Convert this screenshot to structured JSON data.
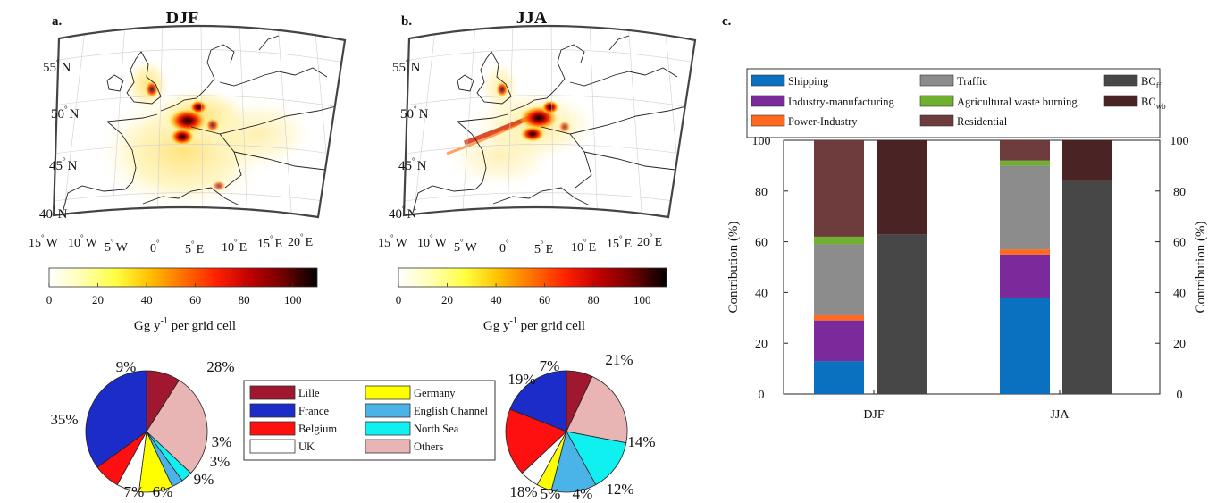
{
  "panels": {
    "a": {
      "letter": "a.",
      "title": "DJF"
    },
    "b": {
      "letter": "b.",
      "title": "JJA"
    },
    "c": {
      "letter": "c."
    }
  },
  "map": {
    "lat_labels": [
      "55",
      "50",
      "45",
      "40"
    ],
    "lat_suffix": "N",
    "lon_labels": [
      {
        "v": "15",
        "d": "W"
      },
      {
        "v": "10",
        "d": "W"
      },
      {
        "v": "5",
        "d": "W"
      },
      {
        "v": "0",
        "d": ""
      },
      {
        "v": "5",
        "d": "E"
      },
      {
        "v": "10",
        "d": "E"
      },
      {
        "v": "15",
        "d": "E"
      },
      {
        "v": "20",
        "d": "E"
      }
    ],
    "colorbar": {
      "ticks": [
        "0",
        "20",
        "40",
        "60",
        "80",
        "100"
      ],
      "range": [
        0,
        110
      ],
      "label_main": "Gg y",
      "label_sup": "-1",
      "label_rest": " per grid cell",
      "colors": [
        "#ffffff",
        "#ffffb0",
        "#ffff40",
        "#ffc000",
        "#ff7000",
        "#ff2000",
        "#c00000",
        "#700000",
        "#000000"
      ]
    }
  },
  "pie_legend": [
    {
      "label": "Lille",
      "color": "#a01830"
    },
    {
      "label": "Germany",
      "color": "#ffff00"
    },
    {
      "label": "France",
      "color": "#1c2cc8"
    },
    {
      "label": "English Channel",
      "color": "#4ab4e8"
    },
    {
      "label": "Belgium",
      "color": "#ff1010"
    },
    {
      "label": "North Sea",
      "color": "#10f0f0"
    },
    {
      "label": "UK",
      "color": "#ffffff"
    },
    {
      "label": "Others",
      "color": "#e8b4b4"
    }
  ],
  "chart_data": [
    {
      "type": "pie",
      "panel": "a",
      "categories": [
        "Lille",
        "Others",
        "North Sea",
        "English Channel",
        "Germany",
        "UK",
        "Belgium",
        "France"
      ],
      "values": [
        9,
        28,
        3,
        3,
        9,
        6,
        7,
        35
      ],
      "labels": [
        "9%",
        "28%",
        "3%",
        "3%",
        "9%",
        "6%",
        "7%",
        "35%"
      ],
      "colors": [
        "#a01830",
        "#e8b4b4",
        "#10f0f0",
        "#4ab4e8",
        "#ffff00",
        "#ffffff",
        "#ff1010",
        "#1c2cc8"
      ]
    },
    {
      "type": "pie",
      "panel": "b",
      "categories": [
        "Lille",
        "Others",
        "North Sea",
        "English Channel",
        "Germany",
        "UK",
        "Belgium",
        "France"
      ],
      "values": [
        7,
        21,
        14,
        12,
        4,
        5,
        18,
        19
      ],
      "labels": [
        "7%",
        "21%",
        "14%",
        "12%",
        "4%",
        "5%",
        "18%",
        "19%"
      ],
      "colors": [
        "#a01830",
        "#e8b4b4",
        "#10f0f0",
        "#4ab4e8",
        "#ffff00",
        "#ffffff",
        "#ff1010",
        "#1c2cc8"
      ]
    },
    {
      "type": "bar",
      "panel": "c",
      "stacked": true,
      "categories": [
        "DJF",
        "JJA"
      ],
      "ylabel": "Contribution (%)",
      "ylabel_right": "Contribution (%)",
      "ylim": [
        0,
        100
      ],
      "yticks": [
        0,
        20,
        40,
        60,
        80,
        100
      ],
      "sector_series": [
        {
          "name": "Shipping",
          "color": "#0a70c0",
          "values": [
            13,
            38
          ]
        },
        {
          "name": "Industry-manufacturing",
          "color": "#7a2a9a",
          "values": [
            16,
            17
          ]
        },
        {
          "name": "Power-Industry",
          "color": "#ff6a20",
          "values": [
            2,
            2
          ]
        },
        {
          "name": "Traffic",
          "color": "#8c8c8c",
          "values": [
            28,
            33
          ]
        },
        {
          "name": "Agricultural waste burning",
          "color": "#70b030",
          "values": [
            3,
            2
          ]
        },
        {
          "name": "Residential",
          "color": "#6e3c3c",
          "values": [
            38,
            8
          ]
        }
      ],
      "bc_series": [
        {
          "name": "BC",
          "sub": "ff",
          "color": "#474747",
          "values": [
            63,
            84
          ]
        },
        {
          "name": "BC",
          "sub": "wb",
          "color": "#4a2424",
          "values": [
            37,
            16
          ]
        }
      ]
    }
  ]
}
